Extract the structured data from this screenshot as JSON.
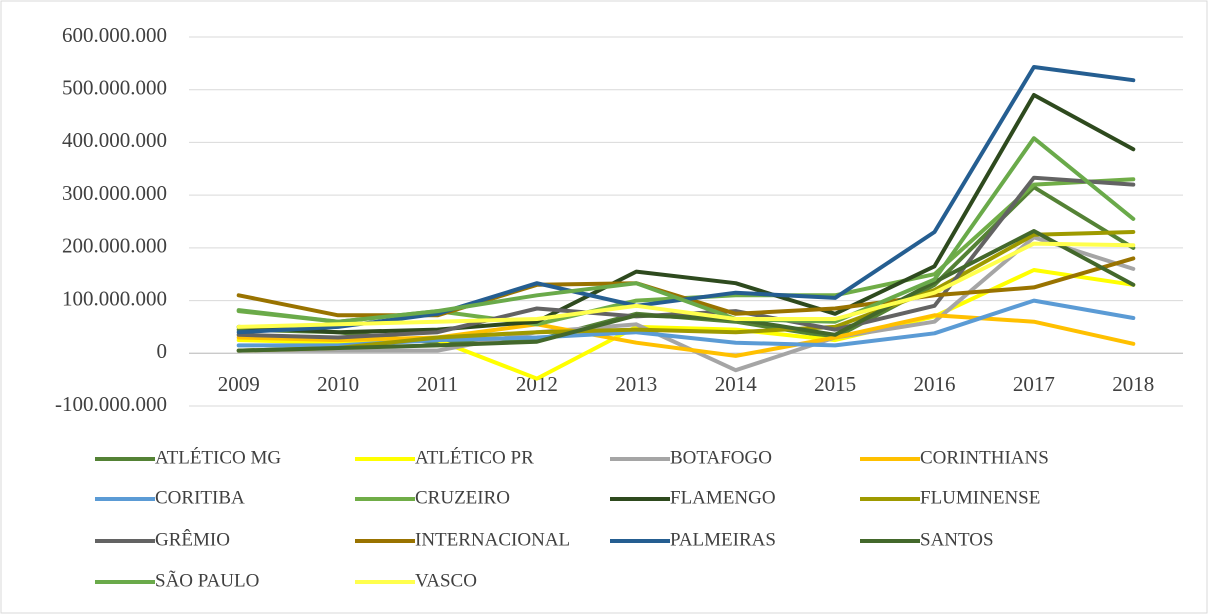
{
  "chart_data": {
    "type": "line",
    "categories": [
      "2009",
      "2010",
      "2011",
      "2012",
      "2013",
      "2014",
      "2015",
      "2016",
      "2017",
      "2018"
    ],
    "ylim": [
      -100000000,
      600000000
    ],
    "yticks": [
      {
        "value": 600000000,
        "label": "600.000.000"
      },
      {
        "value": 500000000,
        "label": "500.000.000"
      },
      {
        "value": 400000000,
        "label": "400.000.000"
      },
      {
        "value": 300000000,
        "label": "300.000.000"
      },
      {
        "value": 200000000,
        "label": "200.000.000"
      },
      {
        "value": 100000000,
        "label": "100.000.000"
      },
      0,
      {
        "value": -100000000,
        "label": "-100.000.000"
      }
    ],
    "grid": true,
    "legend": "bottom",
    "series": [
      {
        "name": "ATLÉTICO MG",
        "color": "#548235",
        "values": [
          45000000,
          40000000,
          20000000,
          25000000,
          75000000,
          60000000,
          30000000,
          130000000,
          315000000,
          200000000
        ]
      },
      {
        "name": "ATLÉTICO PR",
        "color": "#ffff00",
        "values": [
          25000000,
          20000000,
          25000000,
          -48000000,
          50000000,
          45000000,
          25000000,
          70000000,
          158000000,
          130000000
        ]
      },
      {
        "name": "BOTAFOGO",
        "color": "#a5a5a5",
        "values": [
          5000000,
          5000000,
          5000000,
          40000000,
          55000000,
          -32000000,
          30000000,
          60000000,
          220000000,
          160000000
        ]
      },
      {
        "name": "CORINTHIANS",
        "color": "#ffc000",
        "values": [
          30000000,
          25000000,
          30000000,
          55000000,
          20000000,
          -5000000,
          30000000,
          72000000,
          60000000,
          18000000
        ]
      },
      {
        "name": "CORITIBA",
        "color": "#5b9bd5",
        "values": [
          15000000,
          15000000,
          25000000,
          30000000,
          40000000,
          20000000,
          15000000,
          38000000,
          100000000,
          67000000
        ]
      },
      {
        "name": "CRUZEIRO",
        "color": "#70ad47",
        "values": [
          80000000,
          60000000,
          80000000,
          55000000,
          100000000,
          110000000,
          110000000,
          150000000,
          320000000,
          330000000
        ]
      },
      {
        "name": "FLAMENGO",
        "color": "#2e4a1e",
        "values": [
          50000000,
          40000000,
          45000000,
          60000000,
          155000000,
          133000000,
          75000000,
          165000000,
          490000000,
          387000000
        ]
      },
      {
        "name": "FLUMINENSE",
        "color": "#9e9a00",
        "values": [
          5000000,
          10000000,
          30000000,
          40000000,
          45000000,
          40000000,
          50000000,
          120000000,
          225000000,
          230000000
        ]
      },
      {
        "name": "GRÊMIO",
        "color": "#636363",
        "values": [
          35000000,
          30000000,
          40000000,
          85000000,
          70000000,
          80000000,
          45000000,
          90000000,
          333000000,
          320000000
        ]
      },
      {
        "name": "INTERNACIONAL",
        "color": "#997300",
        "values": [
          110000000,
          72000000,
          72000000,
          130000000,
          133000000,
          75000000,
          85000000,
          110000000,
          125000000,
          180000000
        ]
      },
      {
        "name": "PALMEIRAS",
        "color": "#255e91",
        "values": [
          40000000,
          50000000,
          75000000,
          133000000,
          90000000,
          115000000,
          105000000,
          230000000,
          543000000,
          518000000
        ]
      },
      {
        "name": "SANTOS",
        "color": "#43682b",
        "values": [
          5000000,
          10000000,
          15000000,
          22000000,
          72000000,
          65000000,
          35000000,
          135000000,
          232000000,
          130000000
        ]
      },
      {
        "name": "SÃO PAULO",
        "color": "#6aaa4a",
        "values": [
          82000000,
          60000000,
          80000000,
          110000000,
          133000000,
          65000000,
          60000000,
          140000000,
          408000000,
          255000000
        ]
      },
      {
        "name": "VASCO",
        "color": "#ffff4d",
        "values": [
          50000000,
          55000000,
          60000000,
          65000000,
          90000000,
          65000000,
          65000000,
          115000000,
          208000000,
          205000000
        ]
      }
    ]
  }
}
